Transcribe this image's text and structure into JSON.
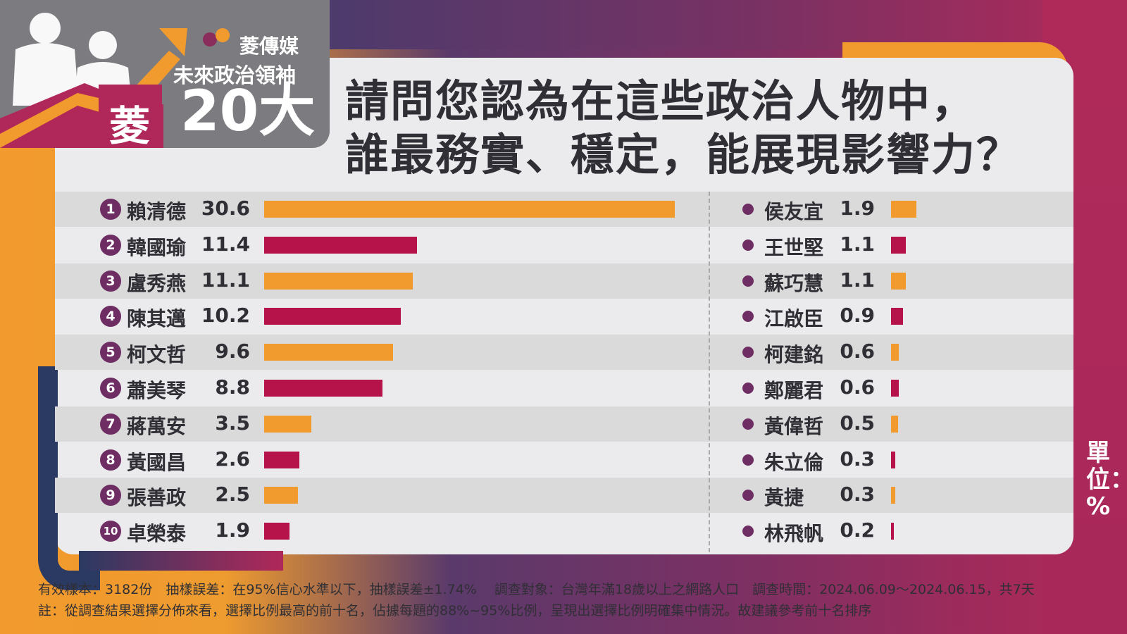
{
  "header": {
    "brand": "菱傳媒",
    "subtitle": "未來政治領袖",
    "big": "20大",
    "badge_char": "菱",
    "title_line1": "請問您認為在這些政治人物中，",
    "title_line2": "誰最務實、穩定，能展現影響力？"
  },
  "unit_label": "單位：%",
  "footer": {
    "line1": "有效樣本：3182份　抽樣誤差：在95%信心水準以下，抽樣誤差±1.74%　 調查對象：台灣年滿18歲以上之網路人口　調查時間：2024.06.09～2024.06.15，共7天",
    "line2": "註：從調查結果選擇分佈來看，選擇比例最高的前十名，佔據每題的88%~95%比例，呈現出選擇比例明確集中情況。故建議參考前十名排序"
  },
  "colors": {
    "orange": "#f19a2e",
    "crimson": "#b5134a",
    "purple": "#6e2d63",
    "blue": "#2a3a62"
  },
  "chart_data": {
    "type": "bar",
    "orientation": "horizontal",
    "unit": "%",
    "top10": [
      {
        "rank": "1",
        "name": "賴清德",
        "value": 30.6,
        "label": "30.6",
        "color": "orange"
      },
      {
        "rank": "2",
        "name": "韓國瑜",
        "value": 11.4,
        "label": "11.4",
        "color": "crimson"
      },
      {
        "rank": "3",
        "name": "盧秀燕",
        "value": 11.1,
        "label": "11.1",
        "color": "orange"
      },
      {
        "rank": "4",
        "name": "陳其邁",
        "value": 10.2,
        "label": "10.2",
        "color": "crimson"
      },
      {
        "rank": "5",
        "name": "柯文哲",
        "value": 9.6,
        "label": "9.6",
        "color": "orange"
      },
      {
        "rank": "6",
        "name": "蕭美琴",
        "value": 8.8,
        "label": "8.8",
        "color": "crimson"
      },
      {
        "rank": "7",
        "name": "蔣萬安",
        "value": 3.5,
        "label": "3.5",
        "color": "orange"
      },
      {
        "rank": "8",
        "name": "黃國昌",
        "value": 2.6,
        "label": "2.6",
        "color": "crimson"
      },
      {
        "rank": "9",
        "name": "張善政",
        "value": 2.5,
        "label": "2.5",
        "color": "orange"
      },
      {
        "rank": "10",
        "name": "卓榮泰",
        "value": 1.9,
        "label": "1.9",
        "color": "crimson"
      }
    ],
    "others": [
      {
        "name": "侯友宜",
        "value": 1.9,
        "label": "1.9",
        "color": "orange"
      },
      {
        "name": "王世堅",
        "value": 1.1,
        "label": "1.1",
        "color": "crimson"
      },
      {
        "name": "蘇巧慧",
        "value": 1.1,
        "label": "1.1",
        "color": "orange"
      },
      {
        "name": "江啟臣",
        "value": 0.9,
        "label": "0.9",
        "color": "crimson"
      },
      {
        "name": "柯建銘",
        "value": 0.6,
        "label": "0.6",
        "color": "orange"
      },
      {
        "name": "鄭麗君",
        "value": 0.6,
        "label": "0.6",
        "color": "crimson"
      },
      {
        "name": "黃偉哲",
        "value": 0.5,
        "label": "0.5",
        "color": "orange"
      },
      {
        "name": "朱立倫",
        "value": 0.3,
        "label": "0.3",
        "color": "crimson"
      },
      {
        "name": "黃捷",
        "value": 0.3,
        "label": "0.3",
        "color": "orange"
      },
      {
        "name": "林飛帆",
        "value": 0.2,
        "label": "0.2",
        "color": "crimson"
      }
    ]
  }
}
